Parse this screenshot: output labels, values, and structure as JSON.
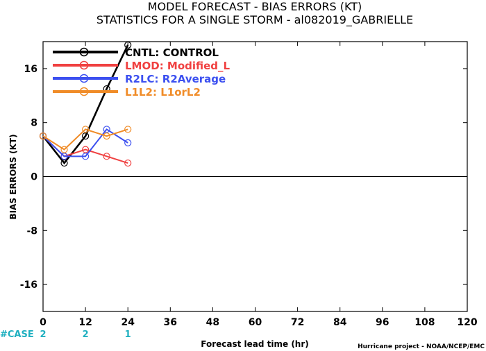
{
  "chart_data": {
    "type": "line",
    "title": "MODEL FORECAST - BIAS ERRORS (KT)",
    "subtitle": "STATISTICS FOR A SINGLE STORM - al082019_GABRIELLE",
    "xlabel": "Forecast lead time (hr)",
    "ylabel": "BIAS ERRORS (KT)",
    "xlim": [
      0,
      120
    ],
    "ylim": [
      -20,
      20
    ],
    "xticks": [
      "0",
      "12",
      "24",
      "36",
      "48",
      "60",
      "72",
      "84",
      "96",
      "108",
      "120"
    ],
    "yticks": [
      {
        "value": 16,
        "label": "16"
      },
      {
        "value": 8,
        "label": "8"
      },
      {
        "value": 0,
        "label": "0"
      },
      {
        "value": -8,
        "label": "-8"
      },
      {
        "value": -16,
        "label": "-16"
      }
    ],
    "legend_position": "top-left",
    "series": [
      {
        "name": "CNTL: CONTROL",
        "color": "#000000",
        "x": [
          0,
          6,
          12,
          18,
          24
        ],
        "y": [
          6,
          2,
          6,
          13,
          19.5
        ]
      },
      {
        "name": "LMOD: Modified_L",
        "color": "#f04040",
        "x": [
          0,
          6,
          12,
          18,
          24
        ],
        "y": [
          6,
          3,
          4,
          3,
          2
        ]
      },
      {
        "name": "R2LC: R2Average",
        "color": "#3c50f0",
        "x": [
          0,
          6,
          12,
          18,
          24
        ],
        "y": [
          6,
          3,
          3,
          7,
          5
        ]
      },
      {
        "name": "L1L2: L1orL2",
        "color": "#f08c28",
        "x": [
          0,
          6,
          12,
          18,
          24
        ],
        "y": [
          6,
          4,
          7,
          6,
          7
        ]
      }
    ],
    "cases": {
      "label": "#CASE",
      "color": "#20b0c0",
      "items": [
        {
          "x": 0,
          "count": "2"
        },
        {
          "x": 12,
          "count": "2"
        },
        {
          "x": 24,
          "count": "1"
        }
      ]
    },
    "credit": "Hurricane project - NOAA/NCEP/EMC"
  }
}
